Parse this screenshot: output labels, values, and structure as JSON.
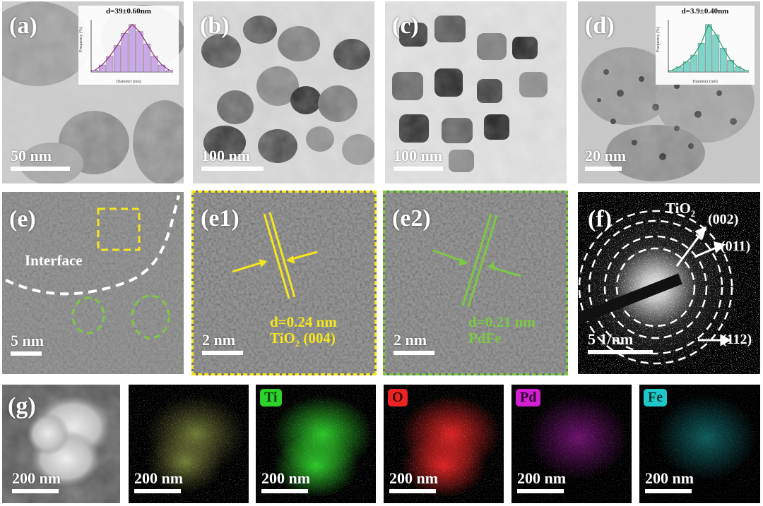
{
  "panels": {
    "a": {
      "label": "(a)",
      "scale": "50 nm"
    },
    "b": {
      "label": "(b)",
      "scale": "100 nm"
    },
    "c": {
      "label": "(c)",
      "scale": "100 nm"
    },
    "d": {
      "label": "(d)",
      "scale": "20 nm"
    },
    "e": {
      "label": "(e)",
      "scale": "5 nm",
      "interface": "Interface"
    },
    "e1": {
      "label": "(e1)",
      "scale": "2 nm",
      "d_spacing": "d=0.24 nm",
      "plane_main": "TiO",
      "plane_sub": "2",
      "plane_hkl": " (004)"
    },
    "e2": {
      "label": "(e2)",
      "scale": "2 nm",
      "d_spacing": "d=0.21 nm",
      "phase": "PdFe"
    },
    "f": {
      "label": "(f)",
      "scale": "5 1/nm",
      "phase_main": "TiO",
      "phase_sub": "2",
      "rings": [
        "(002)",
        "(011)",
        "(112)"
      ]
    },
    "g": {
      "label": "(g)",
      "scale": "200 nm"
    }
  },
  "histograms": {
    "a": {
      "title": "d=39±0.60nm",
      "xlabel": "Diameter (nm)",
      "ylabel": "Frequency (%)",
      "bar_color": "#c9a9e6",
      "curve_color": "#8e2a6f",
      "values": [
        1,
        4,
        9,
        15,
        22,
        27,
        23,
        16,
        9,
        4,
        1
      ]
    },
    "d": {
      "title": "d=3.9±0.40nm",
      "xlabel": "Diameter (nm)",
      "ylabel": "Frequency (%)",
      "bar_color": "#7fd6c8",
      "curve_color": "#1e9c6a",
      "values": [
        1,
        3,
        6,
        10,
        17,
        28,
        22,
        14,
        7,
        3,
        1
      ]
    }
  },
  "eds_maps": [
    {
      "label": "Ti",
      "scale": "200 nm",
      "color": "#2ed12a"
    },
    {
      "label": "O",
      "scale": "200 nm",
      "color": "#e82323"
    },
    {
      "label": "Pd",
      "scale": "200 nm",
      "color": "#d21fd2"
    },
    {
      "label": "Fe",
      "scale": "200 nm",
      "color": "#1ec8c8"
    }
  ],
  "overlay_scale": "200 nm"
}
